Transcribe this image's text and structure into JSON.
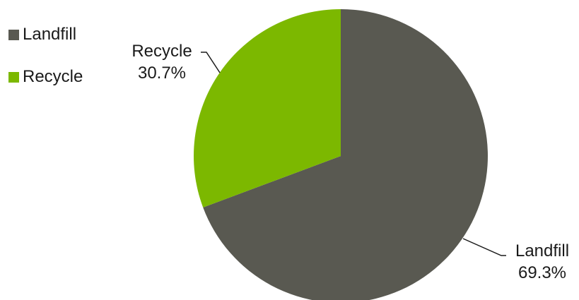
{
  "chart_data": {
    "type": "pie",
    "categories": [
      "Landfill",
      "Recycle"
    ],
    "values": [
      69.3,
      30.7
    ],
    "value_labels": [
      "69.3%",
      "30.7%"
    ],
    "colors": [
      "#595951",
      "#7cb800"
    ],
    "legend": {
      "position": "top-left",
      "entries": [
        "Landfill",
        "Recycle"
      ]
    }
  }
}
